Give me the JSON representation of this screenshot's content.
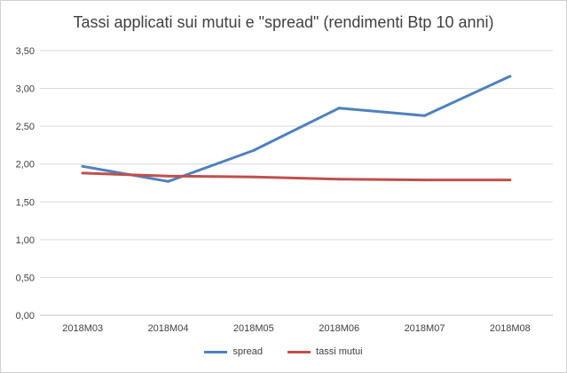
{
  "chart_data": {
    "type": "line",
    "title": "Tassi applicati sui mutui e \"spread\" (rendimenti Btp 10 anni)",
    "categories": [
      "2018M03",
      "2018M04",
      "2018M05",
      "2018M06",
      "2018M07",
      "2018M08"
    ],
    "series": [
      {
        "name": "spread",
        "color": "#4f81bd",
        "values": [
          1.97,
          1.77,
          2.18,
          2.74,
          2.64,
          3.16
        ]
      },
      {
        "name": "tassi mutui",
        "color": "#c0504d",
        "values": [
          1.88,
          1.84,
          1.83,
          1.8,
          1.79,
          1.79
        ]
      }
    ],
    "ylim": [
      0,
      3.5
    ],
    "y_ticks": [
      "0,00",
      "0,50",
      "1,00",
      "1,50",
      "2,00",
      "2,50",
      "3,00",
      "3,50"
    ],
    "grid": true,
    "legend_position": "bottom",
    "xlabel": "",
    "ylabel": ""
  },
  "legend": [
    {
      "label": "spread",
      "color": "#4f81bd"
    },
    {
      "label": "tassi mutui",
      "color": "#c0504d"
    }
  ]
}
